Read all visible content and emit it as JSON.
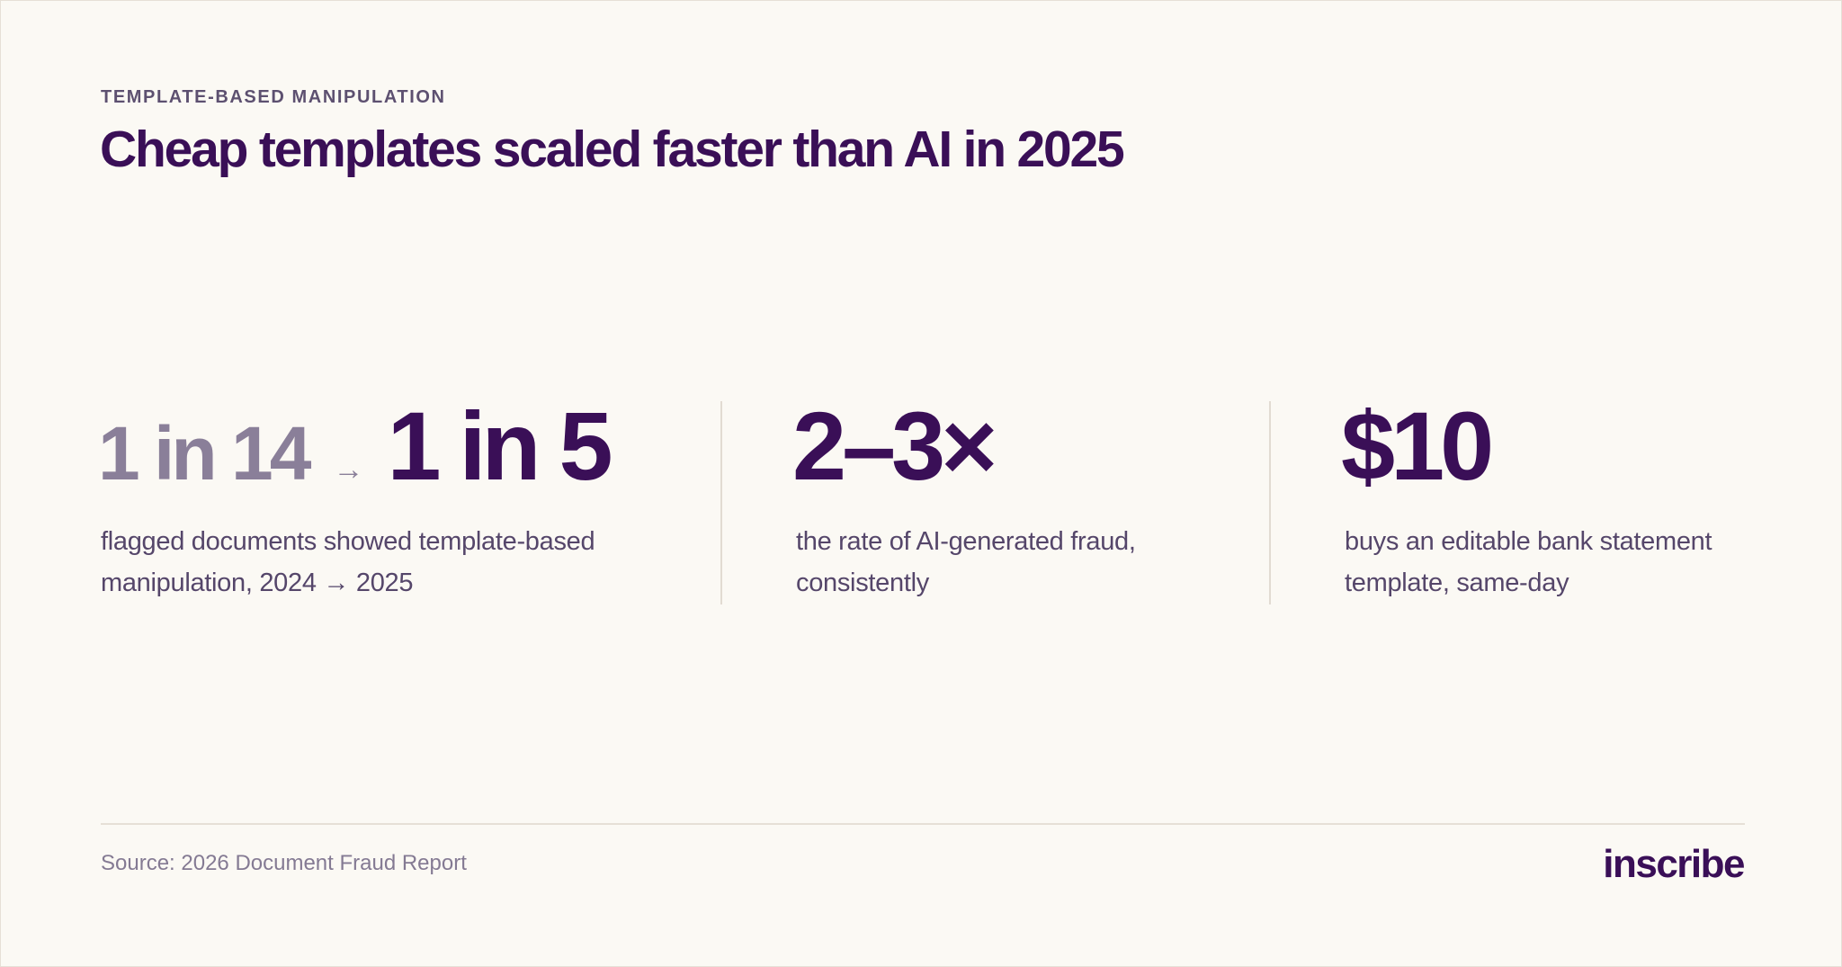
{
  "header": {
    "eyebrow": "TEMPLATE-BASED MANIPULATION",
    "title": "Cheap templates scaled faster than AI in 2025"
  },
  "stats": [
    {
      "from_value": "1 in 14",
      "arrow": "→",
      "value": "1 in 5",
      "description": "flagged documents showed template-based manipulation, 2024 → 2025"
    },
    {
      "value": "2–3×",
      "description": "the rate of AI-generated fraud, consistently"
    },
    {
      "value": "$10",
      "description": "buys an editable bank statement template, same-day"
    }
  ],
  "footer": {
    "source": "Source: 2026 Document Fraud Report",
    "brand": "inscribe"
  },
  "colors": {
    "background": "#fbf9f4",
    "primary": "#3a0f57",
    "muted": "#8a7f99",
    "body_text": "#55466a",
    "divider": "#e2dbd2"
  }
}
